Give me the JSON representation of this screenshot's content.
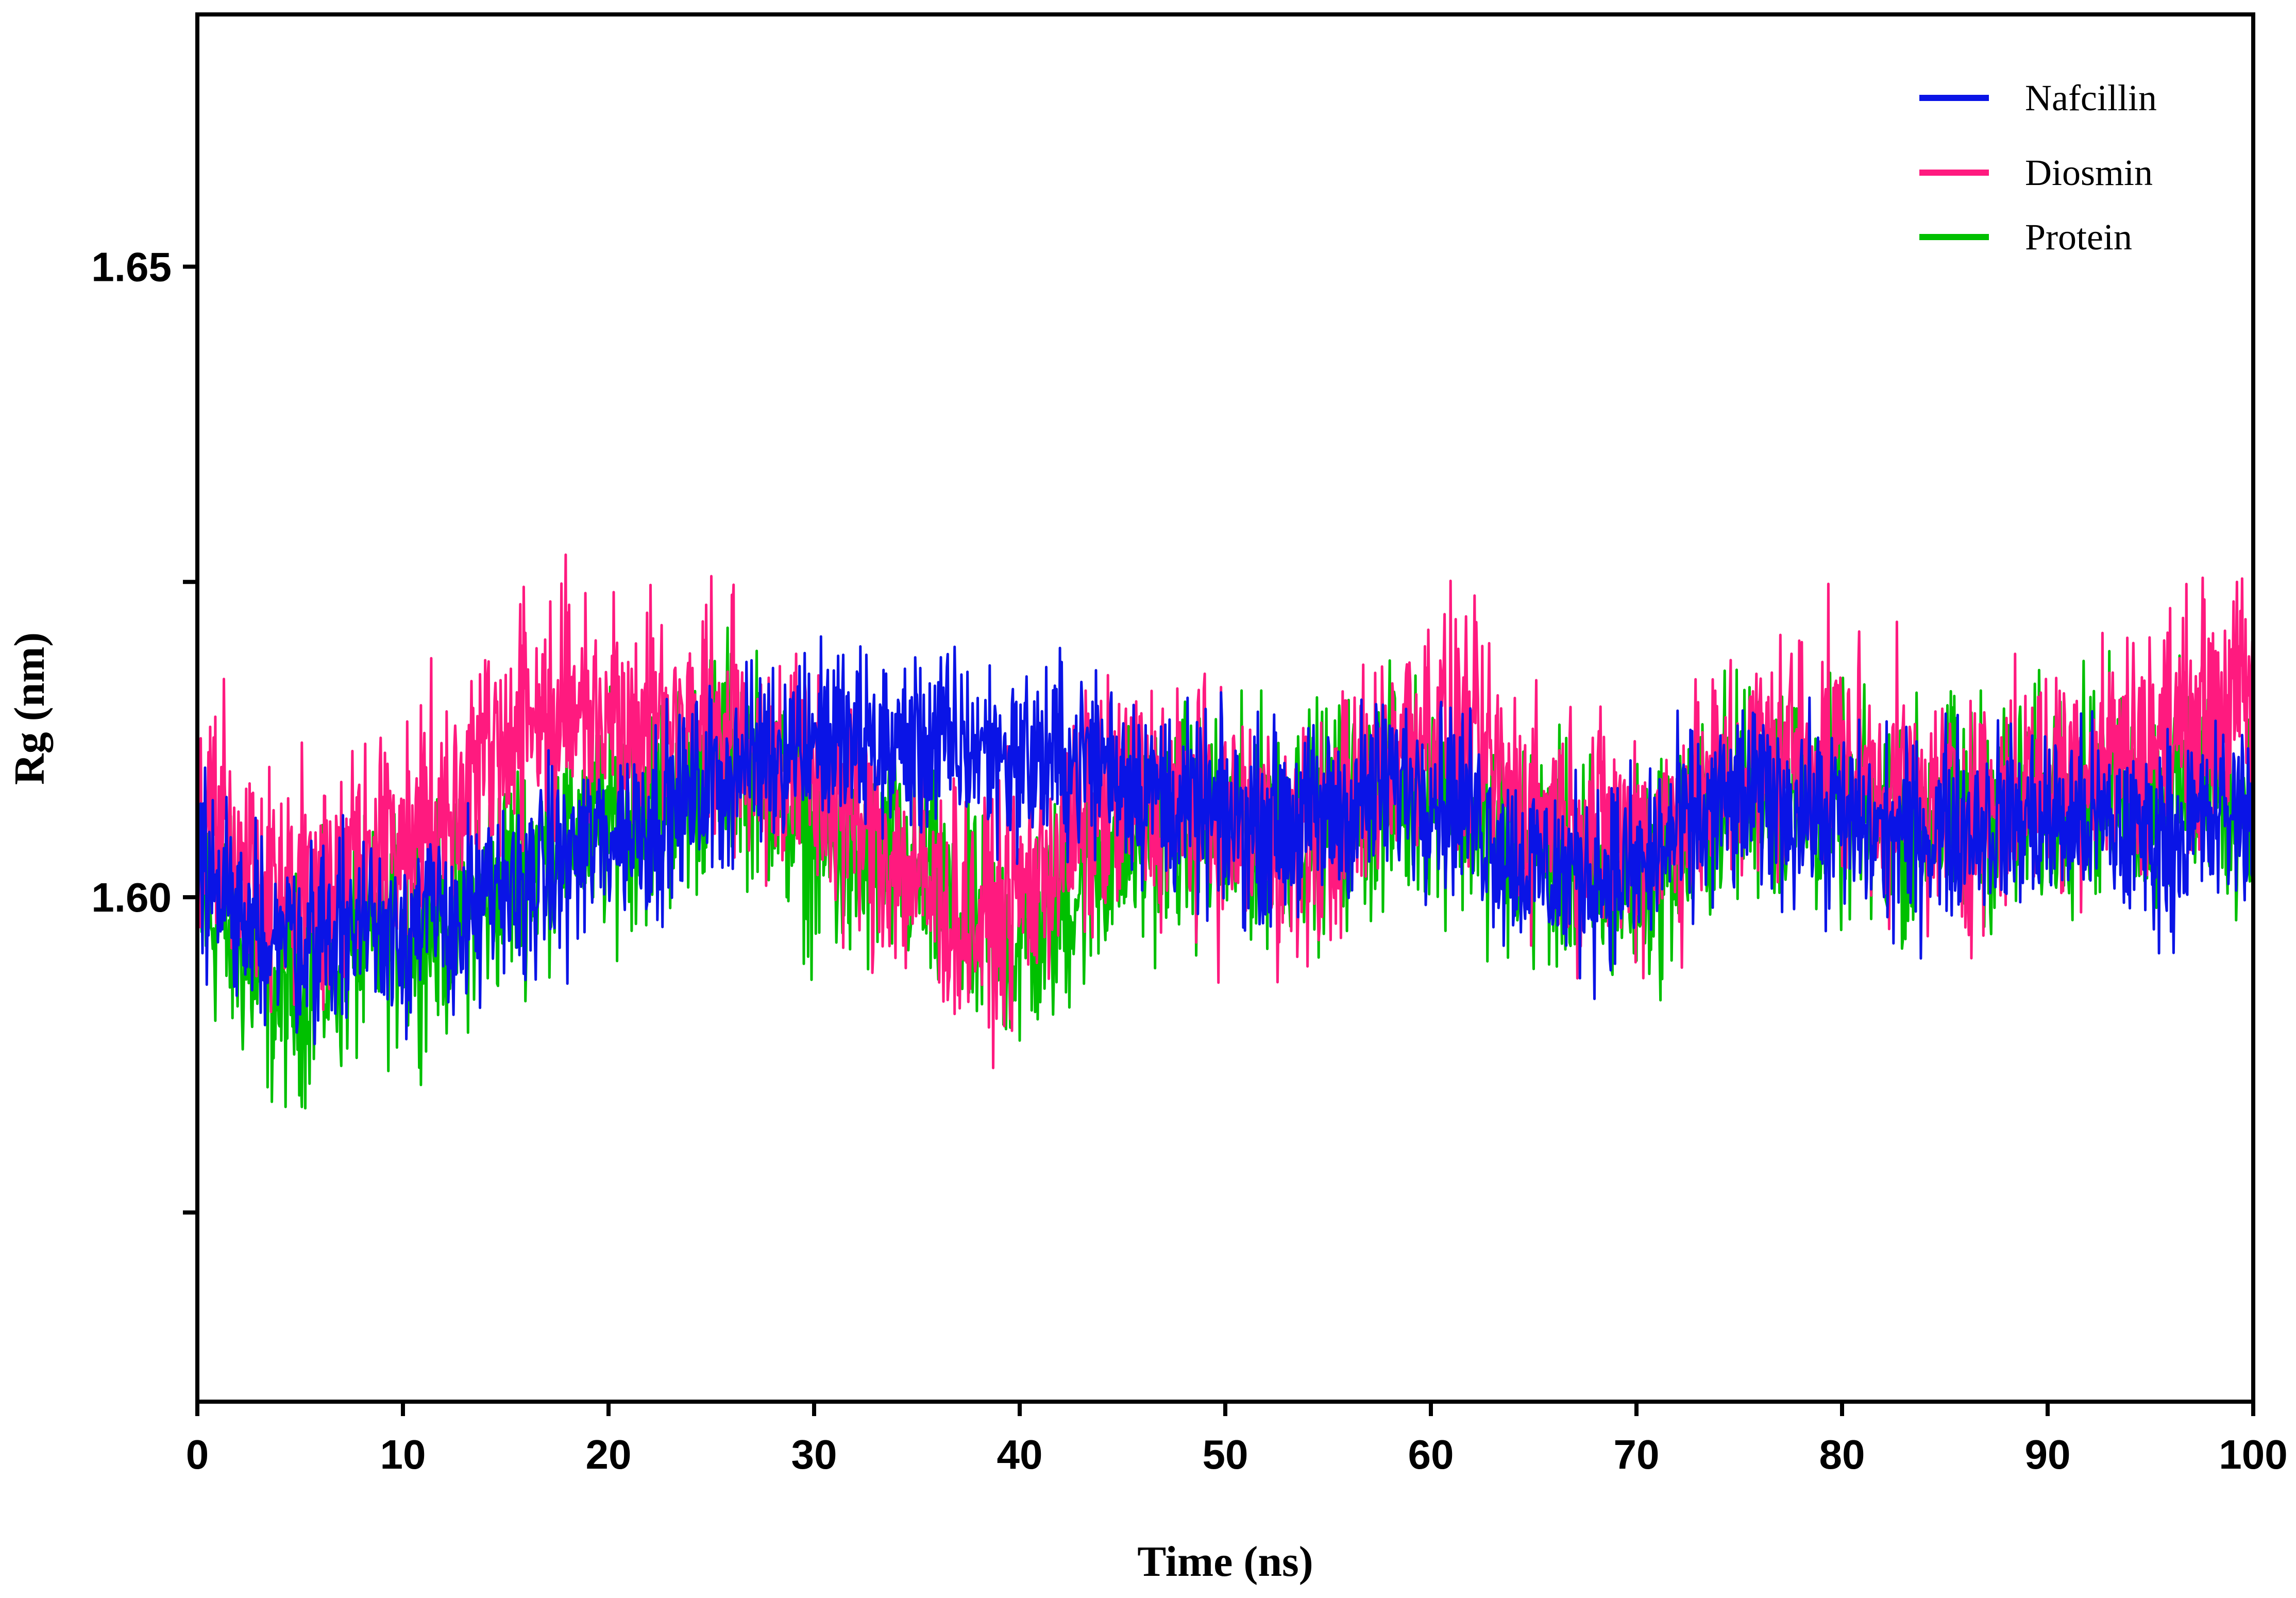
{
  "chart_data": {
    "type": "line",
    "title": "",
    "xlabel": "Time (ns)",
    "ylabel": "Rg (nm)",
    "xlim": [
      0,
      100
    ],
    "ylim": [
      1.56,
      1.67
    ],
    "x_ticks": [
      0,
      10,
      20,
      30,
      40,
      50,
      60,
      70,
      80,
      90,
      100
    ],
    "x_tick_labels": [
      "0",
      "10",
      "20",
      "30",
      "40",
      "50",
      "60",
      "70",
      "80",
      "90",
      "100"
    ],
    "y_ticks": [
      1.575,
      1.6,
      1.625,
      1.65
    ],
    "y_tick_labels": [
      "",
      "1.60",
      "",
      "1.65"
    ],
    "grid": false,
    "legend_position": "top-right",
    "series": [
      {
        "name": "Protein",
        "color": "#00c000",
        "x": [
          0,
          2,
          4,
          6,
          8,
          10,
          12,
          14,
          16,
          18,
          20,
          22,
          24,
          26,
          28,
          30,
          32,
          34,
          36,
          38,
          40,
          42,
          44,
          46,
          48,
          50,
          52,
          54,
          56,
          58,
          60,
          62,
          64,
          66,
          68,
          70,
          72,
          74,
          76,
          78,
          80,
          82,
          84,
          86,
          88,
          90,
          92,
          94,
          96,
          98,
          100
        ],
        "mean": [
          1.6,
          1.596,
          1.592,
          1.594,
          1.596,
          1.597,
          1.598,
          1.6,
          1.603,
          1.605,
          1.606,
          1.607,
          1.609,
          1.612,
          1.609,
          1.604,
          1.602,
          1.603,
          1.6,
          1.597,
          1.596,
          1.599,
          1.603,
          1.605,
          1.606,
          1.605,
          1.606,
          1.606,
          1.607,
          1.608,
          1.609,
          1.607,
          1.604,
          1.603,
          1.602,
          1.601,
          1.604,
          1.608,
          1.609,
          1.608,
          1.607,
          1.606,
          1.606,
          1.607,
          1.607,
          1.608,
          1.609,
          1.608,
          1.608,
          1.609,
          1.607
        ],
        "amplitude": 0.013,
        "min": 1.578,
        "max": 1.628
      },
      {
        "name": "Diosmin",
        "color": "#ff1a7f",
        "x": [
          0,
          2,
          4,
          6,
          8,
          10,
          12,
          14,
          16,
          18,
          20,
          22,
          24,
          26,
          28,
          30,
          32,
          34,
          36,
          38,
          40,
          42,
          44,
          46,
          48,
          50,
          52,
          54,
          56,
          58,
          60,
          62,
          64,
          66,
          68,
          70,
          72,
          74,
          76,
          78,
          80,
          82,
          84,
          86,
          88,
          90,
          92,
          94,
          96,
          98,
          100
        ],
        "mean": [
          1.607,
          1.604,
          1.6,
          1.6,
          1.603,
          1.605,
          1.607,
          1.612,
          1.614,
          1.615,
          1.615,
          1.614,
          1.614,
          1.613,
          1.611,
          1.609,
          1.606,
          1.603,
          1.6,
          1.598,
          1.6,
          1.604,
          1.607,
          1.608,
          1.607,
          1.606,
          1.605,
          1.604,
          1.607,
          1.612,
          1.614,
          1.612,
          1.608,
          1.606,
          1.605,
          1.605,
          1.606,
          1.609,
          1.611,
          1.612,
          1.611,
          1.609,
          1.607,
          1.607,
          1.608,
          1.609,
          1.611,
          1.612,
          1.613,
          1.615,
          1.616
        ],
        "amplitude": 0.014,
        "min": 1.585,
        "max": 1.635
      },
      {
        "name": "Nafcillin",
        "color": "#0a14e6",
        "x": [
          0,
          2,
          4,
          6,
          8,
          10,
          12,
          14,
          16,
          18,
          20,
          22,
          24,
          26,
          28,
          30,
          32,
          34,
          36,
          38,
          40,
          42,
          44,
          46,
          48,
          50,
          52,
          54,
          56,
          58,
          60,
          62,
          64,
          66,
          68,
          70,
          72,
          74,
          76,
          78,
          80,
          82,
          84,
          86,
          88,
          90,
          92,
          94,
          96,
          98,
          100
        ],
        "mean": [
          1.602,
          1.599,
          1.597,
          1.597,
          1.598,
          1.598,
          1.598,
          1.599,
          1.601,
          1.603,
          1.605,
          1.606,
          1.608,
          1.61,
          1.612,
          1.613,
          1.612,
          1.612,
          1.612,
          1.612,
          1.611,
          1.611,
          1.611,
          1.609,
          1.607,
          1.606,
          1.606,
          1.606,
          1.607,
          1.609,
          1.609,
          1.607,
          1.603,
          1.602,
          1.602,
          1.602,
          1.605,
          1.607,
          1.608,
          1.607,
          1.606,
          1.605,
          1.605,
          1.606,
          1.606,
          1.606,
          1.606,
          1.605,
          1.605,
          1.606,
          1.607
        ],
        "amplitude": 0.011,
        "min": 1.585,
        "max": 1.627
      }
    ]
  },
  "legend": {
    "items": [
      {
        "label": "Nafcillin",
        "color": "#0a14e6"
      },
      {
        "label": "Diosmin",
        "color": "#ff1a7f"
      },
      {
        "label": "Protein",
        "color": "#00c000"
      }
    ]
  }
}
